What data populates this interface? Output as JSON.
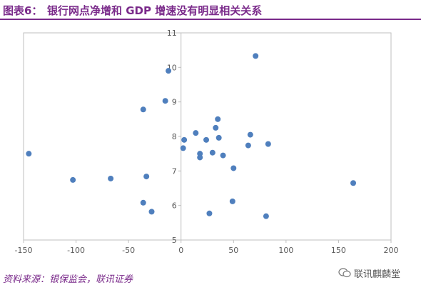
{
  "header": {
    "figure_label": "图表6：",
    "title": "银行网点净增和 GDP 增速没有明显相关关系"
  },
  "footer": {
    "source": "资料来源：银保监会，联讯证券",
    "watermark": "联讯麒麟堂",
    "watermark_icon": "wechat-icon"
  },
  "colors": {
    "accent": "#7a2a8a",
    "point": "#4f7fbd",
    "axis": "#bfbfbf"
  },
  "chart_data": {
    "type": "scatter",
    "xlim": [
      -150,
      200
    ],
    "ylim": [
      5,
      11
    ],
    "x_ticks": [
      -150,
      -100,
      -50,
      0,
      50,
      100,
      150,
      200
    ],
    "y_ticks": [
      5,
      6,
      7,
      8,
      9,
      10,
      11
    ],
    "x_tick_labels": [
      "-150",
      "-100",
      "-50",
      "0",
      "50",
      "100",
      "150",
      "200"
    ],
    "y_tick_labels": [
      "5",
      "6",
      "7",
      "8",
      "9",
      "10",
      "11"
    ],
    "grid": false,
    "points": [
      {
        "x": -145,
        "y": 7.5
      },
      {
        "x": -103,
        "y": 6.74
      },
      {
        "x": -67,
        "y": 6.78
      },
      {
        "x": -36,
        "y": 8.78
      },
      {
        "x": -36,
        "y": 6.08
      },
      {
        "x": -33,
        "y": 6.84
      },
      {
        "x": -28,
        "y": 5.82
      },
      {
        "x": -15,
        "y": 9.03
      },
      {
        "x": -12,
        "y": 9.9
      },
      {
        "x": 2,
        "y": 7.66
      },
      {
        "x": 3,
        "y": 7.9
      },
      {
        "x": 14,
        "y": 8.1
      },
      {
        "x": 18,
        "y": 7.5
      },
      {
        "x": 18,
        "y": 7.39
      },
      {
        "x": 24,
        "y": 7.9
      },
      {
        "x": 27,
        "y": 5.77
      },
      {
        "x": 30,
        "y": 7.53
      },
      {
        "x": 33,
        "y": 8.25
      },
      {
        "x": 35,
        "y": 8.5
      },
      {
        "x": 36,
        "y": 7.96
      },
      {
        "x": 40,
        "y": 7.45
      },
      {
        "x": 49,
        "y": 6.12
      },
      {
        "x": 50,
        "y": 7.08
      },
      {
        "x": 64,
        "y": 7.74
      },
      {
        "x": 66,
        "y": 8.05
      },
      {
        "x": 71,
        "y": 10.33
      },
      {
        "x": 81,
        "y": 5.69
      },
      {
        "x": 83,
        "y": 7.78
      },
      {
        "x": 164,
        "y": 6.65
      }
    ]
  }
}
